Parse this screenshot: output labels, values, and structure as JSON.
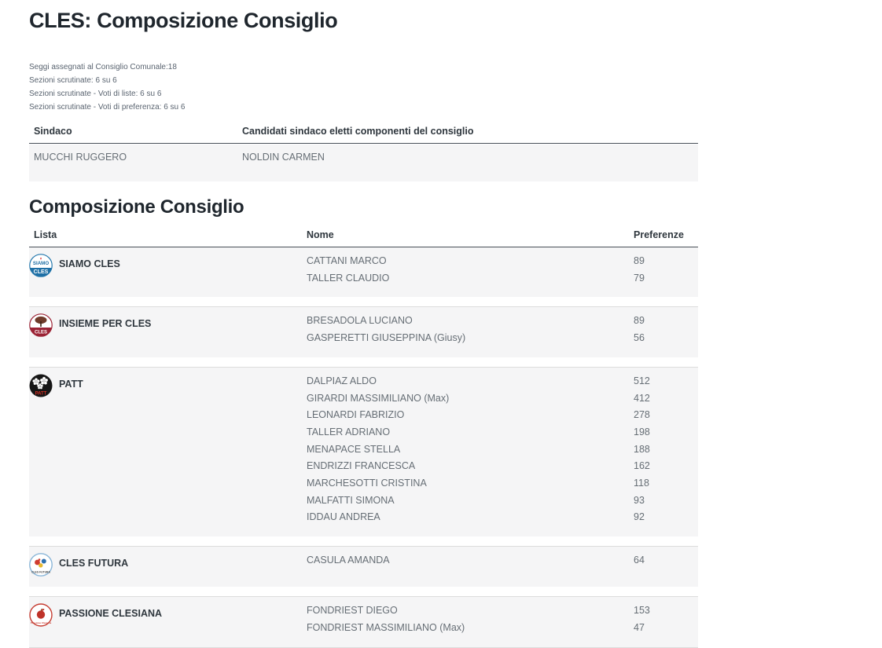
{
  "page": {
    "title": "CLES: Composizione Consiglio",
    "stats": [
      "Seggi assegnati al Consiglio Comunale:18",
      "Sezioni scrutinate: 6 su 6",
      "Sezioni scrutinate - Voti di liste: 6 su 6",
      "Sezioni scrutinate - Voti di preferenza: 6 su 6"
    ]
  },
  "sindaco_table": {
    "headers": [
      "Sindaco",
      "Candidati sindaco eletti componenti del consiglio"
    ],
    "rows": [
      {
        "sindaco": "MUCCHI RUGGERO",
        "candidati": "NOLDIN CARMEN"
      }
    ]
  },
  "council_section": {
    "heading": "Composizione Consiglio",
    "headers": [
      "Lista",
      "Nome",
      "Preferenze"
    ],
    "groups": [
      {
        "list": "SIAMO CLES",
        "logo_icon": "siamo-cles-logo",
        "members": [
          {
            "name": "CATTANI MARCO",
            "pref": "89"
          },
          {
            "name": "TALLER CLAUDIO",
            "pref": "79"
          }
        ]
      },
      {
        "list": "INSIEME PER CLES",
        "logo_icon": "insieme-per-cles-logo",
        "members": [
          {
            "name": "BRESADOLA LUCIANO",
            "pref": "89"
          },
          {
            "name": "GASPERETTI GIUSEPPINA (Giusy)",
            "pref": "56"
          }
        ]
      },
      {
        "list": "PATT",
        "logo_icon": "patt-logo",
        "members": [
          {
            "name": "DALPIAZ ALDO",
            "pref": "512"
          },
          {
            "name": "GIRARDI MASSIMILIANO (Max)",
            "pref": "412"
          },
          {
            "name": "LEONARDI FABRIZIO",
            "pref": "278"
          },
          {
            "name": "TALLER ADRIANO",
            "pref": "198"
          },
          {
            "name": "MENAPACE STELLA",
            "pref": "188"
          },
          {
            "name": "ENDRIZZI FRANCESCA",
            "pref": "162"
          },
          {
            "name": "MARCHESOTTI CRISTINA",
            "pref": "118"
          },
          {
            "name": "MALFATTI SIMONA",
            "pref": "93"
          },
          {
            "name": "IDDAU ANDREA",
            "pref": "92"
          }
        ]
      },
      {
        "list": "CLES FUTURA",
        "logo_icon": "cles-futura-logo",
        "members": [
          {
            "name": "CASULA AMANDA",
            "pref": "64"
          }
        ]
      },
      {
        "list": "PASSIONE CLESIANA",
        "logo_icon": "passione-clesiana-logo",
        "members": [
          {
            "name": "FONDRIEST DIEGO",
            "pref": "153"
          },
          {
            "name": "FONDRIEST MASSIMILIANO (Max)",
            "pref": "47"
          }
        ]
      }
    ]
  },
  "colors": {
    "heading_text": "#1f262d",
    "header_text": "#2e363d",
    "body_text": "#666e75",
    "stats_text": "#5a6470",
    "row_background": "#f5f5f6",
    "header_border": "#474f57",
    "group_divider": "#dcdcdc",
    "siamo_blue": "#1e6fa5",
    "insieme_red": "#9b2335",
    "patt_black": "#161616",
    "patt_red": "#d42f23",
    "futura_border_blue": "#8ab6d8",
    "passione_red": "#c63d32"
  }
}
